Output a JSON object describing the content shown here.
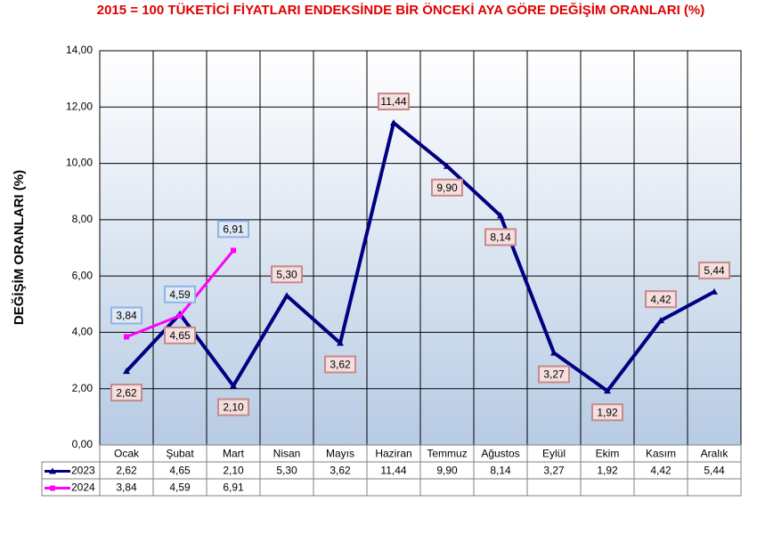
{
  "chart_data": {
    "type": "line",
    "title": "2015 = 100 TÜKETİCİ FİYATLARI ENDEKSİNDE BİR ÖNCEKİ AYA GÖRE DEĞİŞİM ORANLARI (%)",
    "y_label": "DEĞİŞİM ORANLARI (%)",
    "categories": [
      "Ocak",
      "Şubat",
      "Mart",
      "Nisan",
      "Mayıs",
      "Haziran",
      "Temmuz",
      "Ağustos",
      "Eylül",
      "Ekim",
      "Kasım",
      "Aralık"
    ],
    "series": [
      {
        "name": "2023",
        "color": "#000080",
        "marker": "triangle",
        "values": [
          2.62,
          4.65,
          2.1,
          5.3,
          3.62,
          11.44,
          9.9,
          8.14,
          3.27,
          1.92,
          4.42,
          5.44
        ],
        "value_labels": [
          "2,62",
          "4,65",
          "2,10",
          "5,30",
          "3,62",
          "11,44",
          "9,90",
          "8,14",
          "3,27",
          "1,92",
          "4,42",
          "5,44"
        ]
      },
      {
        "name": "2024",
        "color": "#ff00ff",
        "marker": "square",
        "values": [
          3.84,
          4.59,
          6.91,
          null,
          null,
          null,
          null,
          null,
          null,
          null,
          null,
          null
        ],
        "value_labels": [
          "3,84",
          "4,59",
          "6,91",
          null,
          null,
          null,
          null,
          null,
          null,
          null,
          null,
          null
        ]
      }
    ],
    "ylim": [
      0,
      14
    ],
    "yticks": [
      {
        "value": 0,
        "label": "0,00"
      },
      {
        "value": 2,
        "label": "2,00"
      },
      {
        "value": 4,
        "label": "4,00"
      },
      {
        "value": 6,
        "label": "6,00"
      },
      {
        "value": 8,
        "label": "8,00"
      },
      {
        "value": 10,
        "label": "10,00"
      },
      {
        "value": 12,
        "label": "12,00"
      },
      {
        "value": 14,
        "label": "14,00"
      }
    ],
    "grid": true
  }
}
